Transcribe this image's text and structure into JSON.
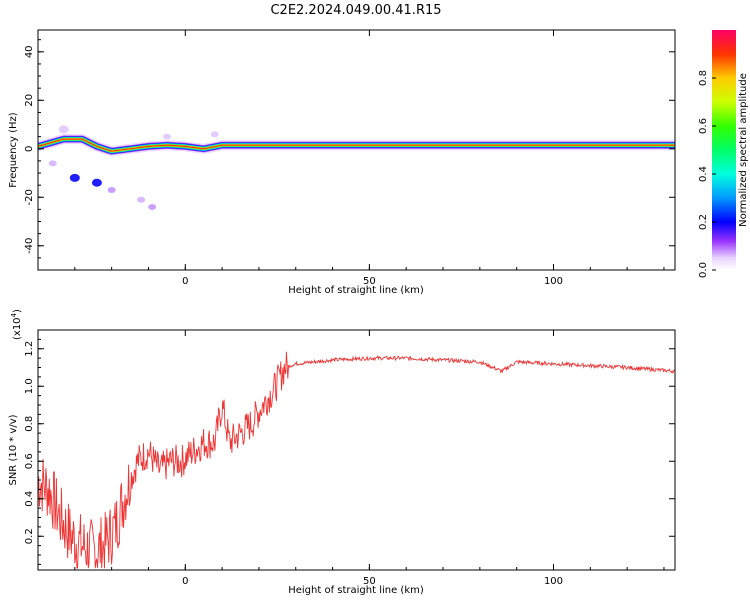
{
  "title": "C2E2.2024.049.00.41.R15",
  "chart_data": [
    {
      "type": "heatmap",
      "xlabel": "Height of straight line (km)",
      "ylabel": "Frequency (Hz)",
      "xlim": [
        -40,
        133
      ],
      "ylim": [
        -50,
        49
      ],
      "x_ticks": [
        0,
        50,
        100
      ],
      "y_ticks": [
        -40,
        -20,
        0,
        20,
        40
      ],
      "colorbar": {
        "label": "Normalized spectral amplitude",
        "range": [
          0,
          1
        ],
        "ticks": [
          "0.0",
          "0.2",
          "0.4",
          "0.6",
          "0.8"
        ]
      },
      "ridge": [
        {
          "x": -40,
          "f": 1
        },
        {
          "x": -33,
          "f": 4
        },
        {
          "x": -28,
          "f": 4
        },
        {
          "x": -24,
          "f": 1
        },
        {
          "x": -20,
          "f": -1
        },
        {
          "x": -15,
          "f": 0
        },
        {
          "x": -10,
          "f": 1
        },
        {
          "x": -5,
          "f": 1.5
        },
        {
          "x": 0,
          "f": 1
        },
        {
          "x": 5,
          "f": 0
        },
        {
          "x": 10,
          "f": 1.5
        },
        {
          "x": 20,
          "f": 1.5
        },
        {
          "x": 30,
          "f": 1.5
        },
        {
          "x": 133,
          "f": 1.5
        }
      ]
    },
    {
      "type": "line",
      "xlabel": "Height of straight line (km)",
      "ylabel": "SNR (10 * v/v)",
      "y_multiplier": "(x10",
      "y_multiplier_exp": "4",
      "xlim": [
        -40,
        133
      ],
      "ylim": [
        0.02,
        1.3
      ],
      "x_ticks": [
        0,
        50,
        100
      ],
      "y_ticks": [
        "0.2",
        "0.4",
        "0.6",
        "0.8",
        "1.0",
        "1.2"
      ],
      "line_color": "#ee3333",
      "series": [
        {
          "x": [
            -40,
            -37,
            -34,
            -31,
            -28,
            -25,
            -22,
            -19,
            -16,
            -13,
            -10,
            -7,
            -4,
            -1,
            2,
            5,
            8,
            10,
            12,
            15,
            18,
            21,
            24,
            27,
            30,
            40,
            50,
            60,
            70,
            80,
            86,
            90,
            100,
            110,
            120,
            133
          ],
          "values": [
            0.5,
            0.45,
            0.3,
            0.2,
            0.15,
            0.12,
            0.15,
            0.25,
            0.45,
            0.6,
            0.65,
            0.55,
            0.6,
            0.6,
            0.65,
            0.7,
            0.7,
            0.9,
            0.7,
            0.75,
            0.8,
            0.9,
            0.98,
            1.1,
            1.12,
            1.14,
            1.15,
            1.15,
            1.14,
            1.13,
            1.08,
            1.13,
            1.12,
            1.11,
            1.1,
            1.08
          ]
        }
      ]
    }
  ]
}
